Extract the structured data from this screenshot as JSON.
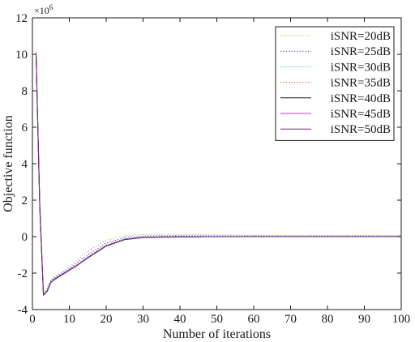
{
  "chart_data": {
    "type": "line",
    "title": "",
    "xlabel": "Number of iterations",
    "ylabel": "Objective function",
    "y_multiplier_base": "×10",
    "y_multiplier_exp": "6",
    "xlim": [
      0,
      100
    ],
    "ylim": [
      -4,
      12
    ],
    "xticks": [
      0,
      10,
      20,
      30,
      40,
      50,
      60,
      70,
      80,
      90,
      100
    ],
    "yticks": [
      -4,
      -2,
      0,
      2,
      4,
      6,
      8,
      10,
      12
    ],
    "grid": false,
    "legend_position": "top-right",
    "series": [
      {
        "name": "iSNR=20dB",
        "color": "#b0b040",
        "dash": "dotted",
        "x": [
          1,
          2,
          3,
          4,
          5,
          6,
          8,
          10,
          12,
          15,
          20,
          25,
          30,
          35,
          40,
          50,
          60,
          70,
          80,
          90,
          100
        ],
        "y": [
          10.2,
          2.0,
          -3.1,
          -2.8,
          -2.35,
          -2.2,
          -1.95,
          -1.65,
          -1.3,
          -0.8,
          -0.2,
          0.05,
          0.12,
          0.13,
          0.12,
          0.1,
          0.08,
          0.07,
          0.07,
          0.07,
          0.07
        ]
      },
      {
        "name": "iSNR=25dB",
        "color": "#3333cc",
        "dash": "dotted",
        "x": [
          1,
          2,
          3,
          4,
          5,
          6,
          8,
          10,
          12,
          15,
          20,
          25,
          30,
          35,
          40,
          50,
          60,
          70,
          80,
          90,
          100
        ],
        "y": [
          10.1,
          1.8,
          -3.15,
          -2.9,
          -2.4,
          -2.25,
          -2.0,
          -1.75,
          -1.45,
          -1.0,
          -0.35,
          -0.05,
          0.04,
          0.05,
          0.05,
          0.04,
          0.04,
          0.03,
          0.03,
          0.03,
          0.03
        ]
      },
      {
        "name": "iSNR=30dB",
        "color": "#33bbbb",
        "dash": "dotted",
        "x": [
          1,
          2,
          3,
          4,
          5,
          6,
          8,
          10,
          12,
          15,
          20,
          25,
          30,
          35,
          40,
          50,
          60,
          70,
          80,
          90,
          100
        ],
        "y": [
          10.0,
          1.7,
          -3.2,
          -2.95,
          -2.45,
          -2.3,
          -2.05,
          -1.8,
          -1.55,
          -1.1,
          -0.45,
          -0.12,
          -0.02,
          0.0,
          0.0,
          0.0,
          0.0,
          0.0,
          0.0,
          0.0,
          0.0
        ]
      },
      {
        "name": "iSNR=35dB",
        "color": "#cc4422",
        "dash": "dotted",
        "x": [
          1,
          2,
          3,
          4,
          5,
          6,
          8,
          10,
          12,
          15,
          20,
          25,
          30,
          35,
          40,
          50,
          60,
          70,
          80,
          90,
          100
        ],
        "y": [
          10.0,
          1.65,
          -3.2,
          -2.97,
          -2.47,
          -2.32,
          -2.07,
          -1.82,
          -1.57,
          -1.13,
          -0.48,
          -0.14,
          -0.03,
          -0.01,
          0.0,
          0.0,
          0.0,
          0.0,
          0.0,
          0.0,
          0.0
        ]
      },
      {
        "name": "iSNR=40dB",
        "color": "#111111",
        "dash": "solid",
        "x": [
          1,
          2,
          3,
          4,
          5,
          6,
          8,
          10,
          12,
          15,
          20,
          25,
          30,
          35,
          40,
          50,
          60,
          70,
          80,
          90,
          100
        ],
        "y": [
          10.0,
          1.6,
          -3.2,
          -3.0,
          -2.5,
          -2.33,
          -2.08,
          -1.83,
          -1.58,
          -1.15,
          -0.5,
          -0.15,
          -0.04,
          -0.02,
          -0.01,
          0.0,
          0.0,
          0.0,
          0.0,
          0.0,
          0.0
        ]
      },
      {
        "name": "iSNR=45dB",
        "color": "#cc33cc",
        "dash": "solid",
        "x": [
          1,
          2,
          3,
          4,
          5,
          6,
          8,
          10,
          12,
          15,
          20,
          25,
          30,
          35,
          40,
          50,
          60,
          70,
          80,
          90,
          100
        ],
        "y": [
          10.0,
          1.6,
          -3.2,
          -3.0,
          -2.5,
          -2.34,
          -2.09,
          -1.84,
          -1.59,
          -1.16,
          -0.51,
          -0.16,
          -0.05,
          -0.02,
          -0.01,
          0.0,
          0.0,
          0.0,
          0.0,
          0.0,
          0.0
        ]
      },
      {
        "name": "iSNR=50dB",
        "color": "#6a2a80",
        "dash": "solid",
        "x": [
          1,
          2,
          3,
          4,
          5,
          6,
          8,
          10,
          12,
          15,
          20,
          25,
          30,
          35,
          40,
          50,
          60,
          70,
          80,
          90,
          100
        ],
        "y": [
          10.0,
          1.6,
          -3.2,
          -3.0,
          -2.5,
          -2.35,
          -2.1,
          -1.85,
          -1.6,
          -1.17,
          -0.52,
          -0.17,
          -0.05,
          -0.03,
          -0.01,
          0.0,
          0.0,
          0.0,
          0.0,
          0.0,
          0.0
        ]
      }
    ]
  }
}
